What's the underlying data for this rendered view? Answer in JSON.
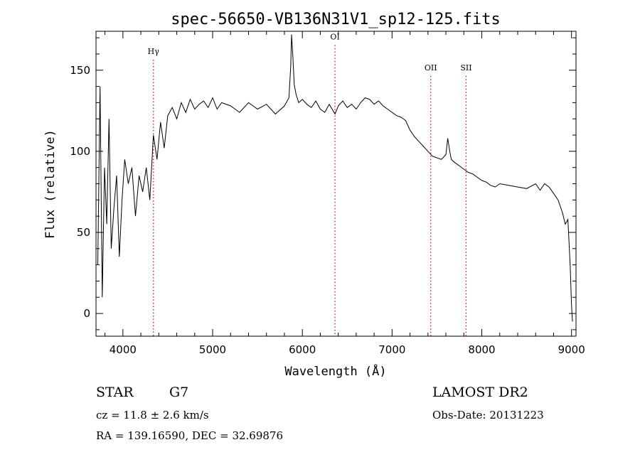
{
  "chart_data": {
    "type": "line",
    "title": "spec-56650-VB136N31V1_sp12-125.fits",
    "xlabel": "Wavelength (Å)",
    "ylabel": "Flux (relative)",
    "xlim": [
      3700,
      9050
    ],
    "ylim": [
      -14,
      174
    ],
    "x_ticks": [
      4000,
      5000,
      6000,
      7000,
      8000,
      9000
    ],
    "x_tick_labels": [
      "4000",
      "5000",
      "6000",
      "7000",
      "8000",
      "9000"
    ],
    "y_ticks": [
      0,
      50,
      100,
      150
    ],
    "y_tick_labels": [
      "0",
      "50",
      "100",
      "150"
    ],
    "grid": false,
    "line_color": "#000000",
    "marker_color": "#cc0000",
    "line_markers": [
      {
        "label": "Hγ",
        "x": 4340,
        "label_y": 160
      },
      {
        "label": "OI",
        "x": 6364,
        "label_y": 169
      },
      {
        "label": "OII",
        "x": 7431,
        "label_y": 150
      },
      {
        "label": "SII",
        "x": 7825,
        "label_y": 150
      }
    ],
    "series": [
      {
        "x": [
          3720,
          3745,
          3770,
          3795,
          3820,
          3845,
          3870,
          3900,
          3930,
          3960,
          3990,
          4020,
          4060,
          4100,
          4140,
          4180,
          4220,
          4260,
          4300,
          4340,
          4380,
          4420,
          4460,
          4500,
          4550,
          4600,
          4650,
          4700,
          4750,
          4800,
          4850,
          4900,
          4950,
          5000,
          5050,
          5100,
          5200,
          5300,
          5400,
          5500,
          5600,
          5700,
          5800,
          5850,
          5870,
          5880,
          5895,
          5910,
          5930,
          5960,
          6000,
          6050,
          6100,
          6150,
          6200,
          6250,
          6300,
          6364,
          6400,
          6450,
          6500,
          6550,
          6600,
          6650,
          6700,
          6750,
          6800,
          6850,
          6900,
          6950,
          7000,
          7050,
          7100,
          7150,
          7200,
          7250,
          7300,
          7350,
          7400,
          7450,
          7500,
          7550,
          7600,
          7620,
          7640,
          7660,
          7700,
          7750,
          7800,
          7850,
          7900,
          7950,
          8000,
          8050,
          8100,
          8150,
          8200,
          8300,
          8400,
          8500,
          8600,
          8650,
          8700,
          8750,
          8800,
          8850,
          8900,
          8930,
          8960,
          8985,
          9000,
          9010
        ],
        "y": [
          30,
          140,
          10,
          90,
          55,
          120,
          40,
          65,
          85,
          35,
          70,
          95,
          80,
          90,
          60,
          85,
          75,
          90,
          70,
          110,
          95,
          118,
          102,
          122,
          127,
          120,
          130,
          124,
          132,
          126,
          129,
          131,
          127,
          133,
          126,
          130,
          128,
          124,
          130,
          126,
          129,
          123,
          128,
          133,
          152,
          172,
          158,
          141,
          135,
          130,
          132,
          129,
          127,
          131,
          126,
          124,
          129,
          123,
          128,
          131,
          127,
          129,
          126,
          130,
          133,
          132,
          129,
          131,
          128,
          126,
          124,
          122,
          121,
          119,
          113,
          109,
          106,
          103,
          100,
          97,
          96,
          95,
          98,
          108,
          101,
          95,
          93,
          91,
          89,
          87,
          86,
          84,
          82,
          81,
          79,
          78,
          80,
          79,
          78,
          77,
          80,
          76,
          80,
          78,
          74,
          70,
          62,
          55,
          58,
          30,
          5,
          -5
        ]
      }
    ]
  },
  "info": {
    "object_class": "STAR",
    "subclass": "G7",
    "survey": "LAMOST DR2",
    "redshift_text": "cz = 11.8 ± 2.6 km/s",
    "obs_date": "Obs-Date: 20131223",
    "coords_text": "RA = 139.16590, DEC =  32.69876"
  }
}
